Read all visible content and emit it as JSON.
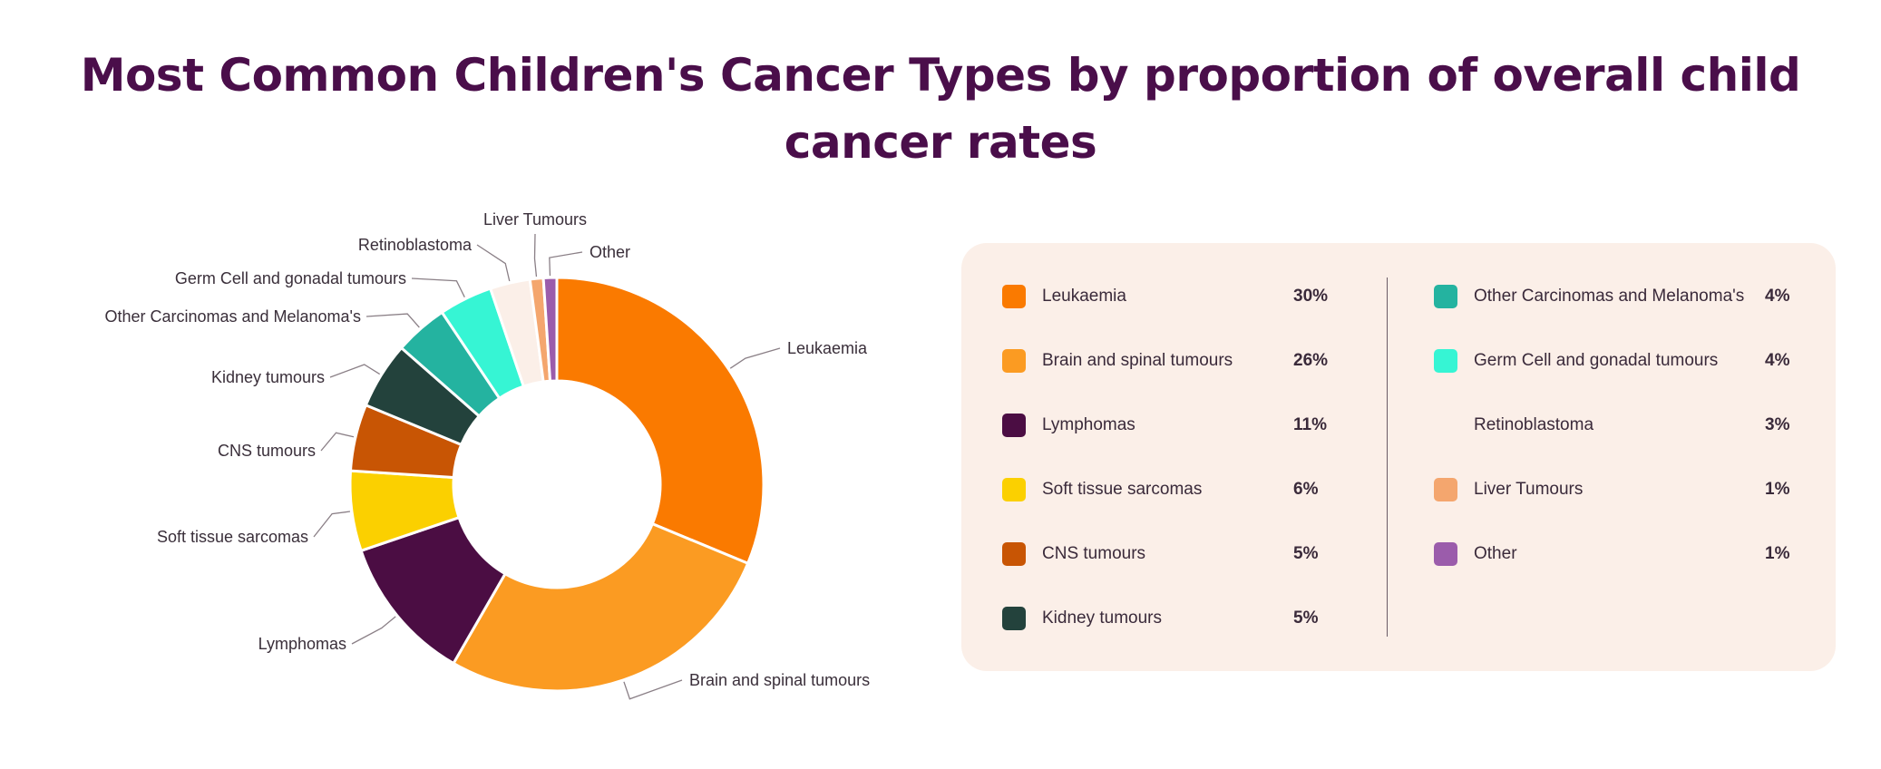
{
  "title": "Most Common Children's Cancer Types by proportion of overall child cancer rates",
  "chart_data": {
    "type": "pie",
    "variant": "donut",
    "title": "Most Common Children's Cancer Types by proportion of overall child cancer rates",
    "unit": "%",
    "categories": [
      "Leukaemia",
      "Brain and spinal tumours",
      "Lymphomas",
      "Soft tissue sarcomas",
      "CNS tumours",
      "Kidney tumours",
      "Other Carcinomas and Melanoma's",
      "Germ Cell and gonadal tumours",
      "Retinoblastoma",
      "Liver Tumours",
      "Other"
    ],
    "values": [
      30,
      26,
      11,
      6,
      5,
      5,
      4,
      4,
      3,
      1,
      1
    ],
    "colors": [
      "#fa7a00",
      "#fb9b22",
      "#4b0d43",
      "#fbd000",
      "#c85504",
      "#23423c",
      "#24b3a0",
      "#36f5d4",
      "#fbefe8",
      "#f4a66e",
      "#9b5cab"
    ],
    "legend_placement": "right",
    "legend": [
      {
        "label": "Leukaemia",
        "value": "30%"
      },
      {
        "label": "Brain and spinal tumours",
        "value": "26%"
      },
      {
        "label": "Lymphomas",
        "value": "11%"
      },
      {
        "label": "Soft tissue sarcomas",
        "value": "6%"
      },
      {
        "label": "CNS tumours",
        "value": "5%"
      },
      {
        "label": "Kidney tumours",
        "value": "5%"
      },
      {
        "label": "Other Carcinomas and Melanoma's",
        "value": "4%"
      },
      {
        "label": "Germ Cell and gonadal tumours",
        "value": "4%"
      },
      {
        "label": "Retinoblastoma",
        "value": "3%"
      },
      {
        "label": "Liver Tumours",
        "value": "1%"
      },
      {
        "label": "Other",
        "value": "1%"
      }
    ]
  }
}
